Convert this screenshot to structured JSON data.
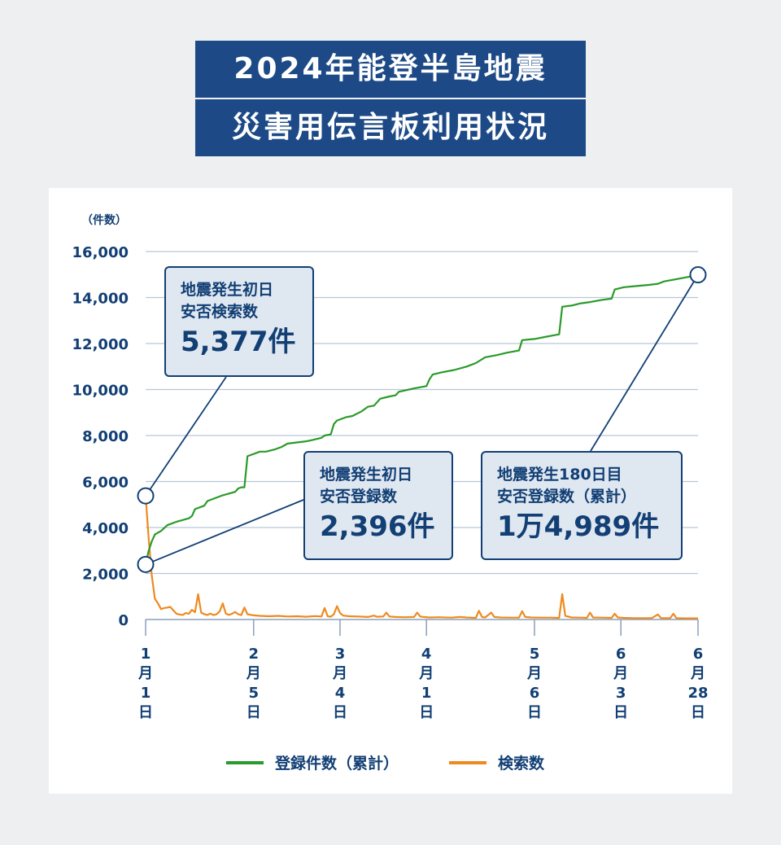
{
  "title": {
    "line1": "2024年能登半島地震",
    "line2": "災害用伝言板利用状況"
  },
  "colors": {
    "title_bg": "#1d4a86",
    "accent_text": "#123f74",
    "registrations": "#2a9a2a",
    "searches": "#ee8a1f",
    "grid": "#b9c7d8",
    "callout_bg": "#dfe7f0"
  },
  "chart_data": {
    "type": "line",
    "ylabel": "（件数）",
    "ylim": [
      0,
      16000
    ],
    "yticks": [
      "0",
      "2,000",
      "4,000",
      "6,000",
      "8,000",
      "10,000",
      "12,000",
      "14,000",
      "16,000"
    ],
    "ytick_values": [
      0,
      2000,
      4000,
      6000,
      8000,
      10000,
      12000,
      14000,
      16000
    ],
    "xlim": [
      0,
      179
    ],
    "xticks": [
      {
        "day": 0,
        "label": [
          "1",
          "月",
          "1",
          "日"
        ]
      },
      {
        "day": 35,
        "label": [
          "2",
          "月",
          "5",
          "日"
        ]
      },
      {
        "day": 63,
        "label": [
          "3",
          "月",
          "4",
          "日"
        ]
      },
      {
        "day": 91,
        "label": [
          "4",
          "月",
          "1",
          "日"
        ]
      },
      {
        "day": 126,
        "label": [
          "5",
          "月",
          "6",
          "日"
        ]
      },
      {
        "day": 154,
        "label": [
          "6",
          "月",
          "3",
          "日"
        ]
      },
      {
        "day": 179,
        "label": [
          "6",
          "月",
          "28",
          "日"
        ]
      }
    ],
    "series": [
      {
        "name": "登録件数（累計）",
        "color": "#2a9a2a",
        "points": [
          [
            0,
            2396
          ],
          [
            1,
            3000
          ],
          [
            2,
            3400
          ],
          [
            3,
            3700
          ],
          [
            5,
            3850
          ],
          [
            7,
            4100
          ],
          [
            10,
            4250
          ],
          [
            14,
            4400
          ],
          [
            15,
            4500
          ],
          [
            16,
            4800
          ],
          [
            19,
            4950
          ],
          [
            20,
            5150
          ],
          [
            25,
            5400
          ],
          [
            29,
            5550
          ],
          [
            30,
            5700
          ],
          [
            31,
            5750
          ],
          [
            32,
            5750
          ],
          [
            33,
            7100
          ],
          [
            35,
            7200
          ],
          [
            37,
            7300
          ],
          [
            39,
            7300
          ],
          [
            42,
            7400
          ],
          [
            44,
            7500
          ],
          [
            46,
            7650
          ],
          [
            49,
            7700
          ],
          [
            52,
            7750
          ],
          [
            54,
            7800
          ],
          [
            57,
            7900
          ],
          [
            58,
            8000
          ],
          [
            60,
            8050
          ],
          [
            61,
            8500
          ],
          [
            62,
            8650
          ],
          [
            65,
            8800
          ],
          [
            67,
            8850
          ],
          [
            70,
            9050
          ],
          [
            72,
            9250
          ],
          [
            74,
            9300
          ],
          [
            76,
            9600
          ],
          [
            79,
            9700
          ],
          [
            81,
            9750
          ],
          [
            82,
            9900
          ],
          [
            87,
            10050
          ],
          [
            91,
            10150
          ],
          [
            92,
            10450
          ],
          [
            93,
            10650
          ],
          [
            96,
            10750
          ],
          [
            100,
            10850
          ],
          [
            104,
            11000
          ],
          [
            107,
            11150
          ],
          [
            110,
            11400
          ],
          [
            114,
            11500
          ],
          [
            117,
            11600
          ],
          [
            119,
            11650
          ],
          [
            121,
            11700
          ],
          [
            122,
            12150
          ],
          [
            126,
            12200
          ],
          [
            130,
            12300
          ],
          [
            132,
            12350
          ],
          [
            134,
            12400
          ],
          [
            135,
            13600
          ],
          [
            138,
            13650
          ],
          [
            141,
            13750
          ],
          [
            144,
            13800
          ],
          [
            148,
            13900
          ],
          [
            151,
            13950
          ],
          [
            152,
            14350
          ],
          [
            155,
            14450
          ],
          [
            159,
            14500
          ],
          [
            163,
            14550
          ],
          [
            166,
            14600
          ],
          [
            168,
            14700
          ],
          [
            172,
            14800
          ],
          [
            176,
            14900
          ],
          [
            179,
            14989
          ]
        ]
      },
      {
        "name": "検索数",
        "color": "#ee8a1f",
        "points": [
          [
            0,
            5377
          ],
          [
            1,
            3500
          ],
          [
            2,
            1900
          ],
          [
            3,
            900
          ],
          [
            4,
            700
          ],
          [
            5,
            450
          ],
          [
            6,
            500
          ],
          [
            7,
            520
          ],
          [
            8,
            550
          ],
          [
            9,
            400
          ],
          [
            10,
            250
          ],
          [
            11,
            220
          ],
          [
            12,
            200
          ],
          [
            13,
            280
          ],
          [
            14,
            250
          ],
          [
            15,
            420
          ],
          [
            16,
            320
          ],
          [
            17,
            1100
          ],
          [
            18,
            300
          ],
          [
            19,
            230
          ],
          [
            20,
            200
          ],
          [
            21,
            260
          ],
          [
            22,
            190
          ],
          [
            23,
            230
          ],
          [
            24,
            350
          ],
          [
            25,
            700
          ],
          [
            26,
            260
          ],
          [
            27,
            200
          ],
          [
            28,
            250
          ],
          [
            29,
            330
          ],
          [
            30,
            230
          ],
          [
            31,
            190
          ],
          [
            32,
            520
          ],
          [
            33,
            230
          ],
          [
            35,
            180
          ],
          [
            37,
            160
          ],
          [
            40,
            140
          ],
          [
            43,
            160
          ],
          [
            46,
            130
          ],
          [
            49,
            140
          ],
          [
            52,
            120
          ],
          [
            55,
            150
          ],
          [
            57,
            130
          ],
          [
            58,
            500
          ],
          [
            59,
            140
          ],
          [
            60,
            120
          ],
          [
            61,
            230
          ],
          [
            62,
            580
          ],
          [
            63,
            280
          ],
          [
            64,
            170
          ],
          [
            66,
            140
          ],
          [
            69,
            130
          ],
          [
            72,
            110
          ],
          [
            74,
            170
          ],
          [
            75,
            120
          ],
          [
            77,
            130
          ],
          [
            78,
            300
          ],
          [
            79,
            130
          ],
          [
            81,
            110
          ],
          [
            84,
            100
          ],
          [
            87,
            110
          ],
          [
            88,
            300
          ],
          [
            89,
            130
          ],
          [
            90,
            110
          ],
          [
            92,
            90
          ],
          [
            95,
            100
          ],
          [
            99,
            80
          ],
          [
            102,
            110
          ],
          [
            104,
            90
          ],
          [
            107,
            70
          ],
          [
            108,
            380
          ],
          [
            109,
            110
          ],
          [
            110,
            90
          ],
          [
            112,
            300
          ],
          [
            113,
            110
          ],
          [
            115,
            90
          ],
          [
            118,
            80
          ],
          [
            121,
            80
          ],
          [
            122,
            360
          ],
          [
            123,
            110
          ],
          [
            125,
            90
          ],
          [
            128,
            80
          ],
          [
            131,
            80
          ],
          [
            134,
            70
          ],
          [
            135,
            1100
          ],
          [
            136,
            160
          ],
          [
            138,
            90
          ],
          [
            141,
            80
          ],
          [
            143,
            70
          ],
          [
            144,
            300
          ],
          [
            145,
            90
          ],
          [
            148,
            80
          ],
          [
            151,
            70
          ],
          [
            152,
            250
          ],
          [
            153,
            90
          ],
          [
            155,
            70
          ],
          [
            158,
            60
          ],
          [
            161,
            60
          ],
          [
            164,
            60
          ],
          [
            166,
            220
          ],
          [
            167,
            60
          ],
          [
            170,
            60
          ],
          [
            171,
            250
          ],
          [
            172,
            60
          ],
          [
            175,
            50
          ],
          [
            179,
            50
          ]
        ]
      }
    ],
    "annotations": [
      {
        "lines": [
          "地震発生初日",
          "安否検索数"
        ],
        "value": "5,377件",
        "day": 0,
        "y": 5377
      },
      {
        "lines": [
          "地震発生初日",
          "安否登録数"
        ],
        "value": "2,396件",
        "day": 0,
        "y": 2396
      },
      {
        "lines": [
          "地震発生180日目",
          "安否登録数（累計）"
        ],
        "value": "1万4,989件",
        "day": 179,
        "y": 14989
      }
    ]
  }
}
